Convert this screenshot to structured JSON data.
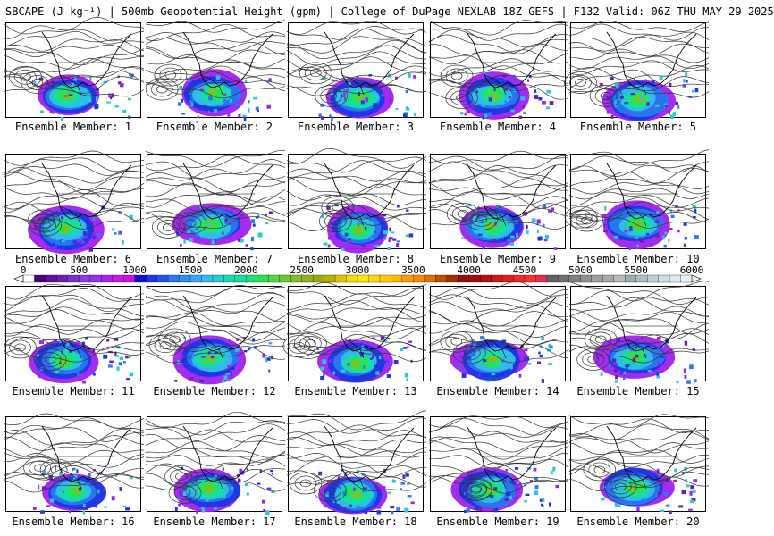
{
  "header": {
    "title": "SBCAPE (J kg⁻¹) | 500mb Geopotential Height (gpm) | College of DuPage NEXLAB 18Z GEFS | F132 Valid: 06Z THU MAY 29 2025"
  },
  "members": [
    {
      "label": "Ensemble Member: 1"
    },
    {
      "label": "Ensemble Member: 2"
    },
    {
      "label": "Ensemble Member: 3"
    },
    {
      "label": "Ensemble Member: 4"
    },
    {
      "label": "Ensemble Member: 5"
    },
    {
      "label": "Ensemble Member: 6"
    },
    {
      "label": "Ensemble Member: 7"
    },
    {
      "label": "Ensemble Member: 8"
    },
    {
      "label": "Ensemble Member: 9"
    },
    {
      "label": "Ensemble Member: 10"
    },
    {
      "label": "Ensemble Member: 11"
    },
    {
      "label": "Ensemble Member: 12"
    },
    {
      "label": "Ensemble Member: 13"
    },
    {
      "label": "Ensemble Member: 14"
    },
    {
      "label": "Ensemble Member: 15"
    },
    {
      "label": "Ensemble Member: 16"
    },
    {
      "label": "Ensemble Member: 17"
    },
    {
      "label": "Ensemble Member: 18"
    },
    {
      "label": "Ensemble Member: 19"
    },
    {
      "label": "Ensemble Member: 20"
    }
  ],
  "colorbar": {
    "tick_labels": [
      "0",
      "500",
      "1000",
      "1500",
      "2000",
      "2500",
      "3000",
      "3500",
      "4000",
      "4500",
      "5000",
      "5500",
      "6000"
    ],
    "colors": [
      "#ffffff",
      "#4b0082",
      "#5a1296",
      "#6a1fb0",
      "#7a2fd0",
      "#8b3be6",
      "#9a30f0",
      "#b020f0",
      "#c818e8",
      "#d010d8",
      "#1010d0",
      "#1838e0",
      "#2058ea",
      "#2a78f0",
      "#3090f4",
      "#38a8f6",
      "#30c0e8",
      "#20d0d0",
      "#18d8b8",
      "#10e0a0",
      "#20e070",
      "#30e050",
      "#50d840",
      "#70c830",
      "#80c020",
      "#90b020",
      "#a0a810",
      "#b8b000",
      "#d8c800",
      "#f0e000",
      "#ffe800",
      "#ffd800",
      "#ffc800",
      "#ffb800",
      "#ffa000",
      "#ff8800",
      "#e07000",
      "#c05000",
      "#a03000",
      "#901010",
      "#a01010",
      "#b81010",
      "#d01818",
      "#e02020",
      "#f02828",
      "#ff3030",
      "#e03050",
      "#606060",
      "#707070",
      "#808080",
      "#909090",
      "#a0a0a0",
      "#a8a8a8",
      "#b8b8b8",
      "#9ab0b8",
      "#a8c0c8",
      "#b8d0d8",
      "#c8e0e8",
      "#d8ecf0",
      "#e8f4f8"
    ]
  }
}
